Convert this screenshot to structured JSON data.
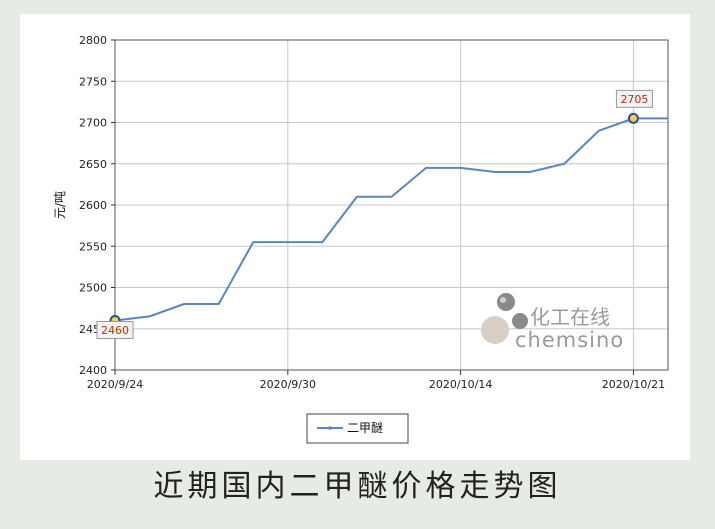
{
  "caption": "近期国内二甲醚价格走势图",
  "watermark": {
    "cn": "化工在线",
    "en": "chemsino"
  },
  "chart_data": {
    "type": "line",
    "title": "",
    "ylabel": "元/吨",
    "xlabel": "",
    "ylim": [
      2400,
      2800
    ],
    "yticks": [
      2400,
      2450,
      2500,
      2550,
      2600,
      2650,
      2700,
      2750,
      2800
    ],
    "xlim": [
      "2020-09-24",
      "2020-10-26"
    ],
    "xticks": [
      {
        "date": "2020-09-24",
        "label": "2020/9/24"
      },
      {
        "date": "2020-10-04",
        "label": "2020/9/30"
      },
      {
        "date": "2020-10-14",
        "label": "2020/10/14"
      },
      {
        "date": "2020-10-24",
        "label": "2020/10/21"
      }
    ],
    "grid": true,
    "legend_position": "bottom",
    "series_color": "#5b86c5",
    "series": [
      {
        "name": "二甲醚",
        "points": [
          {
            "x": "2020-09-24",
            "y": 2460
          },
          {
            "x": "2020-09-26",
            "y": 2465
          },
          {
            "x": "2020-09-28",
            "y": 2480
          },
          {
            "x": "2020-09-30",
            "y": 2480
          },
          {
            "x": "2020-10-02",
            "y": 2555
          },
          {
            "x": "2020-10-04",
            "y": 2555
          },
          {
            "x": "2020-10-06",
            "y": 2555
          },
          {
            "x": "2020-10-08",
            "y": 2610
          },
          {
            "x": "2020-10-10",
            "y": 2610
          },
          {
            "x": "2020-10-12",
            "y": 2645
          },
          {
            "x": "2020-10-14",
            "y": 2645
          },
          {
            "x": "2020-10-16",
            "y": 2640
          },
          {
            "x": "2020-10-18",
            "y": 2640
          },
          {
            "x": "2020-10-20",
            "y": 2650
          },
          {
            "x": "2020-10-22",
            "y": 2690
          },
          {
            "x": "2020-10-24",
            "y": 2705
          },
          {
            "x": "2020-10-26",
            "y": 2705
          }
        ]
      }
    ],
    "annotations": [
      {
        "x": "2020-09-24",
        "y": 2460,
        "label": "2460"
      },
      {
        "x": "2020-10-24",
        "y": 2705,
        "label": "2705"
      }
    ]
  }
}
